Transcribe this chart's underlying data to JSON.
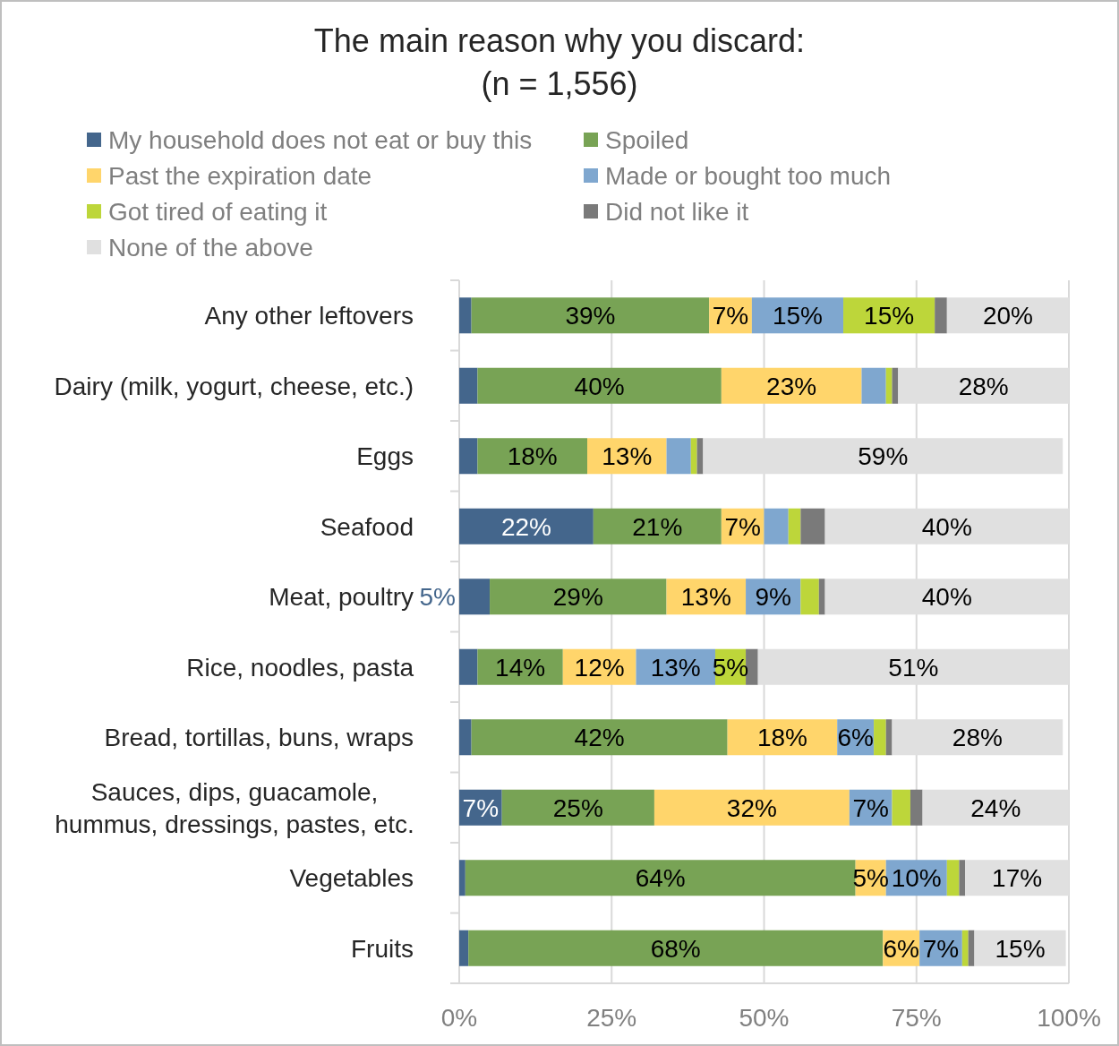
{
  "chart_data": {
    "type": "bar",
    "orientation": "horizontal",
    "stacked": true,
    "title": "The main reason why you discard:\n(n = 1,556)",
    "categories": [
      "Any other leftovers",
      "Dairy (milk, yogurt, cheese, etc.)",
      "Eggs",
      "Seafood",
      "Meat, poultry",
      "Rice, noodles, pasta",
      "Bread, tortillas, buns, wraps",
      "Sauces, dips, guacamole,\nhummus, dressings, pastes, etc.",
      "Vegetables",
      "Fruits"
    ],
    "series": [
      {
        "name": "My household does not eat or buy this",
        "color": "#44668c",
        "values": [
          2,
          3,
          3,
          22,
          5,
          3,
          2,
          7,
          1,
          1.5
        ],
        "value_labels": [
          null,
          null,
          null,
          "22%",
          "5%",
          null,
          null,
          "7%",
          null,
          null
        ]
      },
      {
        "name": "Spoiled",
        "color": "#78a355",
        "values": [
          39,
          40,
          18,
          21,
          29,
          14,
          42,
          25,
          64,
          68
        ],
        "value_labels": [
          "39%",
          "40%",
          "18%",
          "21%",
          "29%",
          "14%",
          "42%",
          "25%",
          "64%",
          "68%"
        ]
      },
      {
        "name": "Past the expiration date",
        "color": "#ffd56b",
        "values": [
          7,
          23,
          13,
          7,
          13,
          12,
          18,
          32,
          5,
          6
        ],
        "value_labels": [
          "7%",
          "23%",
          "13%",
          "7%",
          "13%",
          "12%",
          "18%",
          "32%",
          "5%",
          "6%"
        ]
      },
      {
        "name": "Made or bought too much",
        "color": "#7fa7cf",
        "values": [
          15,
          4,
          4,
          4,
          9,
          13,
          6,
          7,
          10,
          7
        ],
        "value_labels": [
          "15%",
          null,
          null,
          null,
          "9%",
          "13%",
          "6%",
          "7%",
          "10%",
          "7%"
        ]
      },
      {
        "name": "Got tired of eating it",
        "color": "#bdd63a",
        "values": [
          15,
          1,
          1,
          2,
          3,
          5,
          2,
          3,
          2,
          1
        ],
        "value_labels": [
          "15%",
          null,
          null,
          null,
          null,
          "5%",
          null,
          null,
          null,
          null
        ]
      },
      {
        "name": "Did not like it",
        "color": "#7a7a7a",
        "values": [
          2,
          1,
          1,
          4,
          1,
          2,
          1,
          2,
          1,
          1
        ],
        "value_labels": [
          null,
          null,
          null,
          null,
          null,
          null,
          null,
          null,
          null,
          null
        ]
      },
      {
        "name": "None of the above",
        "color": "#e0e0e0",
        "values": [
          20,
          28,
          59,
          40,
          40,
          51,
          28,
          24,
          17,
          15
        ],
        "value_labels": [
          "20%",
          "28%",
          "59%",
          "40%",
          "40%",
          "51%",
          "28%",
          "24%",
          "17%",
          "15%"
        ]
      }
    ],
    "xlim": [
      0,
      100
    ],
    "xticks": [
      {
        "value": 0,
        "label": "0%"
      },
      {
        "value": 25,
        "label": "25%"
      },
      {
        "value": 50,
        "label": "50%"
      },
      {
        "value": 75,
        "label": "75%"
      },
      {
        "value": 100,
        "label": "100%"
      }
    ],
    "grid": "x",
    "legend": "top"
  }
}
